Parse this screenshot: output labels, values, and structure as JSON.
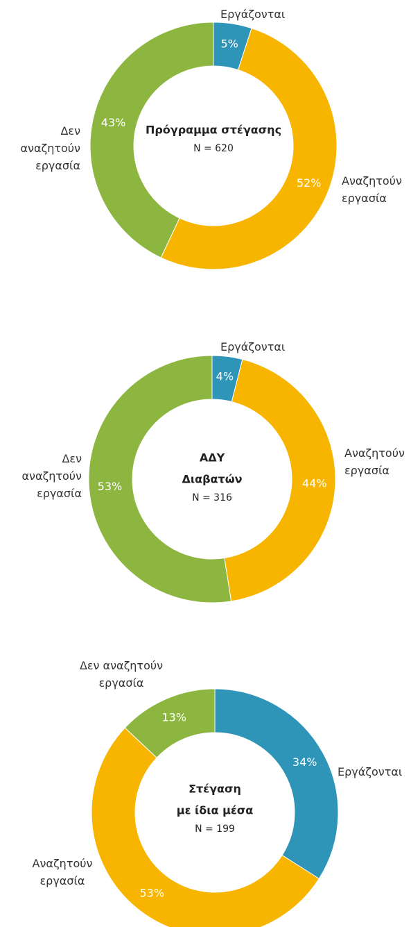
{
  "chart_data": [
    {
      "type": "donut",
      "title": [
        "Πρόγραμμα στέγασης"
      ],
      "subtitle": "N = 620",
      "categories": [
        "Εργάζονται",
        "Αναζητούν εργασία",
        "Δεν αναζητούν εργασία"
      ],
      "values": [
        5,
        52,
        43
      ],
      "value_labels": [
        "5%",
        "52%",
        "43%"
      ],
      "colors": [
        "#2e95b8",
        "#f7b500",
        "#8db641"
      ]
    },
    {
      "type": "donut",
      "title": [
        "ΑΔΥ",
        "Διαβατών"
      ],
      "subtitle": "N = 316",
      "categories": [
        "Εργάζονται",
        "Αναζητούν εργασία",
        "Δεν αναζητούν εργασία"
      ],
      "values": [
        4,
        44,
        53
      ],
      "value_labels": [
        "4%",
        "44%",
        "53%"
      ],
      "colors": [
        "#2e95b8",
        "#f7b500",
        "#8db641"
      ]
    },
    {
      "type": "donut",
      "title": [
        "Στέγαση",
        "με ίδια μέσα"
      ],
      "subtitle": "N = 199",
      "categories": [
        "Εργάζονται",
        "Αναζητούν εργασία",
        "Δεν αναζητούν εργασία"
      ],
      "values": [
        34,
        53,
        13
      ],
      "value_labels": [
        "34%",
        "53%",
        "13%"
      ],
      "colors": [
        "#2e95b8",
        "#f7b500",
        "#8db641"
      ]
    }
  ]
}
